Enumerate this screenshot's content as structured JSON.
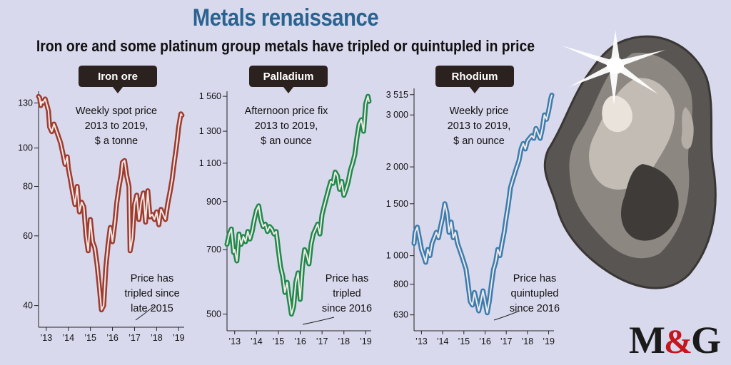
{
  "title": "Metals renaissance",
  "subtitle": "Iron ore and some platinum group metals have tripled or quintupled in price",
  "logo": {
    "left": "M",
    "amp": "&",
    "right": "G"
  },
  "colors": {
    "background": "#d9d9ee",
    "title": "#2a6390",
    "iron": "#9e3a2e",
    "palladium": "#1f8a4c",
    "rhodium": "#3b7db0",
    "label_box": "#2b211e"
  },
  "chart_data": [
    {
      "type": "line",
      "title": "Iron ore",
      "scale": "log",
      "ylim": [
        38,
        138
      ],
      "yticks": [
        40,
        60,
        80,
        100,
        130
      ],
      "ytick_labels": [
        "40",
        "60",
        "80",
        "100",
        "130"
      ],
      "xlim": [
        2013.0,
        2019.6
      ],
      "xticks": [
        2013.35,
        2014.35,
        2015.35,
        2016.35,
        2017.35,
        2018.35,
        2019.35
      ],
      "xtick_labels": [
        "’13",
        "’14",
        "’15",
        "’16",
        "’17",
        "’18",
        "’19"
      ],
      "description": [
        "Weekly spot price",
        "2013 to 2019,",
        "$ a tonne"
      ],
      "annotation": [
        "Price has",
        "tripled since",
        "late 2015"
      ],
      "series": [
        {
          "x": [
            2013.0,
            2013.05,
            2013.1,
            2013.15,
            2013.2,
            2013.3,
            2013.4,
            2013.45,
            2013.5,
            2013.6,
            2013.7,
            2013.8,
            2013.9,
            2014.0,
            2014.1,
            2014.2,
            2014.3,
            2014.35,
            2014.45,
            2014.55,
            2014.65,
            2014.75,
            2014.85,
            2014.95,
            2015.05,
            2015.15,
            2015.25,
            2015.35,
            2015.45,
            2015.55,
            2015.65,
            2015.75,
            2015.85,
            2015.95,
            2016.05,
            2016.15,
            2016.25,
            2016.3,
            2016.35,
            2016.45,
            2016.55,
            2016.65,
            2016.75,
            2016.8,
            2016.9,
            2017.0,
            2017.1,
            2017.15,
            2017.25,
            2017.35,
            2017.45,
            2017.55,
            2017.65,
            2017.75,
            2017.85,
            2017.95,
            2018.05,
            2018.15,
            2018.25,
            2018.35,
            2018.45,
            2018.55,
            2018.65,
            2018.75,
            2018.85,
            2018.95,
            2019.05,
            2019.15,
            2019.25,
            2019.35,
            2019.45,
            2019.5
          ],
          "y": [
            135,
            134,
            128,
            131,
            130,
            133,
            127,
            124,
            113,
            110,
            115,
            111,
            107,
            103,
            97,
            91,
            95,
            89,
            83,
            77,
            72,
            80,
            69,
            73,
            71,
            60,
            55,
            66,
            58,
            56,
            51,
            45,
            39,
            40,
            50,
            57,
            63,
            61,
            58,
            64,
            73,
            80,
            86,
            92,
            93,
            85,
            80,
            55,
            59,
            72,
            76,
            66,
            73,
            77,
            65,
            78,
            67,
            68,
            66,
            69,
            64,
            70,
            68,
            66,
            72,
            77,
            83,
            92,
            101,
            113,
            122,
            121
          ]
        }
      ]
    },
    {
      "type": "line",
      "title": "Palladium",
      "scale": "log",
      "ylim": [
        490,
        1590
      ],
      "yticks": [
        500,
        700,
        900,
        1100,
        1300,
        1560
      ],
      "ytick_labels": [
        "500",
        "700",
        "900",
        "1 100",
        "1 300",
        "1 560"
      ],
      "xlim": [
        2013.0,
        2019.6
      ],
      "xticks": [
        2013.35,
        2014.35,
        2015.35,
        2016.35,
        2017.35,
        2018.35,
        2019.35
      ],
      "xtick_labels": [
        "’13",
        "’14",
        "’15",
        "’16",
        "’17",
        "’18",
        "’19"
      ],
      "description": [
        "Afternoon price fix",
        "2013 to 2019,",
        "$ an ounce"
      ],
      "annotation": [
        "Price has",
        "tripled",
        "since 2016"
      ],
      "series": [
        {
          "x": [
            2013.0,
            2013.1,
            2013.2,
            2013.3,
            2013.35,
            2013.45,
            2013.55,
            2013.65,
            2013.75,
            2013.85,
            2013.95,
            2014.05,
            2014.15,
            2014.25,
            2014.35,
            2014.45,
            2014.55,
            2014.65,
            2014.75,
            2014.85,
            2014.95,
            2015.05,
            2015.15,
            2015.25,
            2015.35,
            2015.45,
            2015.55,
            2015.65,
            2015.75,
            2015.85,
            2015.95,
            2016.05,
            2016.15,
            2016.25,
            2016.35,
            2016.45,
            2016.55,
            2016.65,
            2016.75,
            2016.85,
            2016.95,
            2017.05,
            2017.15,
            2017.25,
            2017.35,
            2017.45,
            2017.55,
            2017.65,
            2017.75,
            2017.85,
            2017.95,
            2018.05,
            2018.15,
            2018.25,
            2018.35,
            2018.45,
            2018.55,
            2018.65,
            2018.75,
            2018.85,
            2018.95,
            2019.05,
            2019.15,
            2019.25,
            2019.35,
            2019.45,
            2019.5
          ],
          "y": [
            720,
            760,
            780,
            690,
            700,
            660,
            760,
            720,
            750,
            730,
            770,
            740,
            770,
            820,
            860,
            880,
            820,
            790,
            800,
            770,
            790,
            780,
            760,
            770,
            700,
            640,
            610,
            560,
            590,
            540,
            500,
            520,
            590,
            620,
            540,
            640,
            700,
            680,
            650,
            720,
            760,
            780,
            800,
            760,
            840,
            880,
            920,
            960,
            1000,
            990,
            1050,
            1030,
            960,
            1000,
            930,
            960,
            1000,
            1060,
            1100,
            1150,
            1260,
            1350,
            1380,
            1300,
            1500,
            1560,
            1520
          ]
        }
      ]
    },
    {
      "type": "line",
      "title": "Rhodium",
      "scale": "log",
      "ylim": [
        615,
        3650
      ],
      "yticks": [
        630,
        800,
        1000,
        1500,
        2000,
        3000,
        3515
      ],
      "ytick_labels": [
        "630",
        "800",
        "1 000",
        "1 500",
        "2 000",
        "3 000",
        "3 515"
      ],
      "xlim": [
        2013.0,
        2019.6
      ],
      "xticks": [
        2013.35,
        2014.35,
        2015.35,
        2016.35,
        2017.35,
        2018.35,
        2019.35
      ],
      "xtick_labels": [
        "’13",
        "’14",
        "’15",
        "’16",
        "’17",
        "’18",
        "’19"
      ],
      "description": [
        "Weekly price",
        "2013 to 2019,",
        "$ an ounce"
      ],
      "annotation": [
        "Price has",
        "quintupled",
        "since 2016"
      ],
      "series": [
        {
          "x": [
            2013.0,
            2013.05,
            2013.15,
            2013.25,
            2013.35,
            2013.45,
            2013.55,
            2013.65,
            2013.75,
            2013.85,
            2013.95,
            2014.05,
            2014.15,
            2014.25,
            2014.35,
            2014.45,
            2014.55,
            2014.65,
            2014.75,
            2014.85,
            2014.95,
            2015.05,
            2015.15,
            2015.25,
            2015.35,
            2015.45,
            2015.55,
            2015.65,
            2015.75,
            2015.85,
            2015.95,
            2016.05,
            2016.15,
            2016.25,
            2016.35,
            2016.45,
            2016.55,
            2016.65,
            2016.75,
            2016.85,
            2016.95,
            2017.05,
            2017.15,
            2017.25,
            2017.35,
            2017.45,
            2017.55,
            2017.65,
            2017.75,
            2017.85,
            2017.95,
            2018.05,
            2018.15,
            2018.25,
            2018.35,
            2018.45,
            2018.55,
            2018.65,
            2018.75,
            2018.85,
            2018.95,
            2019.05,
            2019.15,
            2019.25,
            2019.35,
            2019.45,
            2019.5
          ],
          "y": [
            1100,
            1200,
            1250,
            1150,
            1050,
            1000,
            950,
            1050,
            1000,
            1100,
            1150,
            1200,
            1150,
            1250,
            1350,
            1500,
            1400,
            1200,
            1300,
            1150,
            1200,
            1100,
            1050,
            1000,
            950,
            900,
            800,
            700,
            680,
            750,
            700,
            650,
            700,
            760,
            700,
            640,
            700,
            800,
            900,
            950,
            1050,
            1000,
            1100,
            1200,
            1350,
            1500,
            1700,
            1800,
            1900,
            2000,
            2100,
            2300,
            2400,
            2300,
            2450,
            2500,
            2550,
            2500,
            2700,
            2600,
            2500,
            2700,
            3000,
            2900,
            3100,
            3400,
            3500
          ]
        }
      ]
    }
  ]
}
